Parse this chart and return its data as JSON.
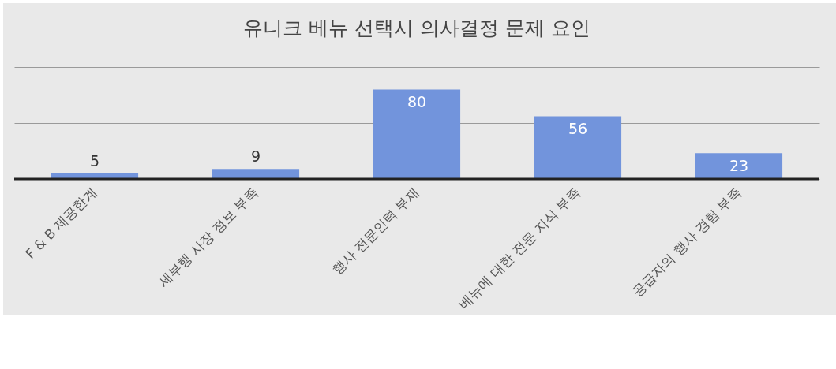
{
  "chart_data": {
    "type": "bar",
    "title": "유니크 베뉴  선택시 의사결정 문제 요인",
    "categories": [
      "F & B 제공한계",
      "세부행 사장 정보 부족",
      "행사 전문인력 부재",
      "베뉴에 대한 전문 지식 부족",
      "공급자의 행사 경험 부족"
    ],
    "values": [
      5,
      9,
      80,
      56,
      23
    ],
    "color": "#7294dc",
    "ylim": [
      0,
      100
    ],
    "yticks": [
      0,
      50,
      100
    ],
    "grid": "y",
    "tick_labels": "x",
    "data_labels": true
  }
}
